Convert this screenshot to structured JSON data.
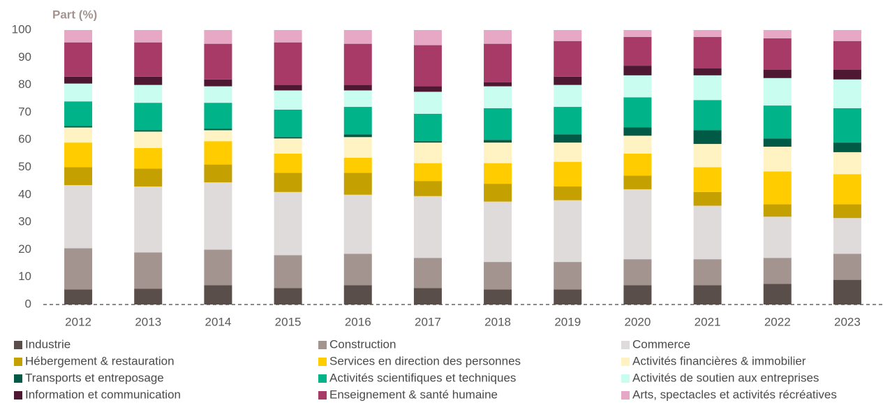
{
  "chart_data": {
    "type": "stacked-bar",
    "title": "Part (%)",
    "categories": [
      "2012",
      "2013",
      "2014",
      "2015",
      "2016",
      "2017",
      "2018",
      "2019",
      "2020",
      "2021",
      "2022",
      "2023"
    ],
    "ylim": [
      0,
      100
    ],
    "yticks": [
      0,
      10,
      20,
      30,
      40,
      50,
      60,
      70,
      80,
      90,
      100
    ],
    "legend": "bottom",
    "series": [
      {
        "name": "Industrie",
        "color": "#5a4e4a",
        "values": [
          5.5,
          5.8,
          7,
          6,
          7,
          6,
          5.5,
          5.5,
          7,
          7,
          7.5,
          9
        ]
      },
      {
        "name": "Construction",
        "color": "#a39490",
        "values": [
          15,
          13.2,
          13,
          12,
          11.5,
          11,
          10,
          10,
          9.5,
          9.5,
          9.5,
          9.5
        ]
      },
      {
        "name": "Commerce",
        "color": "#e0dbdb",
        "values": [
          23,
          24,
          24.5,
          23,
          21.5,
          22.5,
          22,
          22.5,
          25.5,
          19.5,
          15,
          13
        ]
      },
      {
        "name": "Hébergement & restauration",
        "color": "#c4a000",
        "values": [
          6.5,
          6.5,
          6.5,
          7,
          8,
          5.5,
          6.5,
          5,
          5,
          5,
          4.5,
          5
        ]
      },
      {
        "name": "Services en direction des personnes",
        "color": "#ffcc00",
        "values": [
          9,
          7.5,
          8.5,
          7,
          5.5,
          6.5,
          7.5,
          9,
          8,
          9,
          12,
          11
        ]
      },
      {
        "name": "Activités financières & immobilier",
        "color": "#fff3c4",
        "values": [
          5.5,
          6,
          4,
          5.5,
          7.5,
          7.5,
          7.5,
          7,
          6.5,
          8.5,
          9,
          8
        ]
      },
      {
        "name": "Transports et entreposage",
        "color": "#005a46",
        "values": [
          0.5,
          0.5,
          0.5,
          0.5,
          1,
          0.5,
          1,
          3,
          3,
          5,
          3,
          3.5
        ]
      },
      {
        "name": "Activités scientifiques et techniques",
        "color": "#00b388",
        "values": [
          9,
          10,
          9.5,
          10,
          10,
          10,
          11.5,
          10,
          11,
          11,
          12,
          12.5
        ]
      },
      {
        "name": "Activités de soutien aux entreprises",
        "color": "#c9fdf0",
        "values": [
          6.5,
          6.5,
          6,
          7,
          6,
          8,
          8,
          8,
          8,
          9,
          10,
          10.5
        ]
      },
      {
        "name": "Information et communication",
        "color": "#4e1832",
        "values": [
          2.5,
          3,
          2.5,
          2,
          2,
          2,
          1.5,
          3,
          3.5,
          2.5,
          3,
          3.5
        ]
      },
      {
        "name": "Enseignement & santé humaine",
        "color": "#a83a68",
        "values": [
          12.5,
          12.5,
          13,
          15.5,
          15,
          15,
          14,
          13,
          10.5,
          11.5,
          11.5,
          10.5
        ]
      },
      {
        "name": "Arts, spectacles et activités récréatives",
        "color": "#e6a8c4",
        "values": [
          4.5,
          4.5,
          5,
          4.5,
          5,
          5.5,
          5,
          4,
          2.5,
          2.5,
          3,
          4
        ]
      }
    ]
  }
}
